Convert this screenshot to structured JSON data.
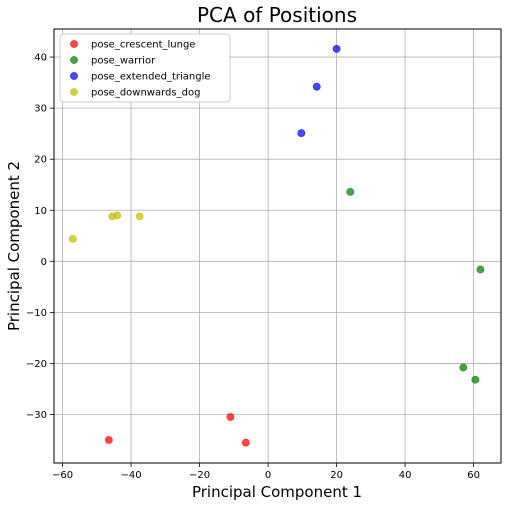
{
  "chart_data": {
    "type": "scatter",
    "title": "PCA of Positions",
    "xlabel": "Principal Component 1",
    "ylabel": "Principal Component 2",
    "xlim": [
      -62.5,
      68
    ],
    "ylim": [
      -39.5,
      45.5
    ],
    "xticks": [
      -60,
      -40,
      -20,
      0,
      20,
      40,
      60
    ],
    "yticks": [
      -30,
      -20,
      -10,
      0,
      10,
      20,
      30,
      40
    ],
    "grid": true,
    "legend_position": "top-left",
    "series": [
      {
        "name": "pose_crescent_lunge",
        "color": "#ff0000",
        "points": [
          [
            -46.5,
            -35
          ],
          [
            -11,
            -30.5
          ],
          [
            -6.5,
            -35.5
          ]
        ]
      },
      {
        "name": "pose_warrior",
        "color": "#008000",
        "points": [
          [
            24,
            13.6
          ],
          [
            62,
            -1.6
          ],
          [
            57,
            -20.8
          ],
          [
            60.5,
            -23.2
          ]
        ]
      },
      {
        "name": "pose_extended_triangle",
        "color": "#0000ff",
        "points": [
          [
            20,
            41.6
          ],
          [
            14.2,
            34.2
          ],
          [
            9.7,
            25.1
          ]
        ]
      },
      {
        "name": "pose_downwards_dog",
        "color": "#bfbf00",
        "points": [
          [
            -57,
            4.4
          ],
          [
            -45.5,
            8.8
          ],
          [
            -44,
            9
          ],
          [
            -37.5,
            8.8
          ]
        ]
      }
    ]
  }
}
